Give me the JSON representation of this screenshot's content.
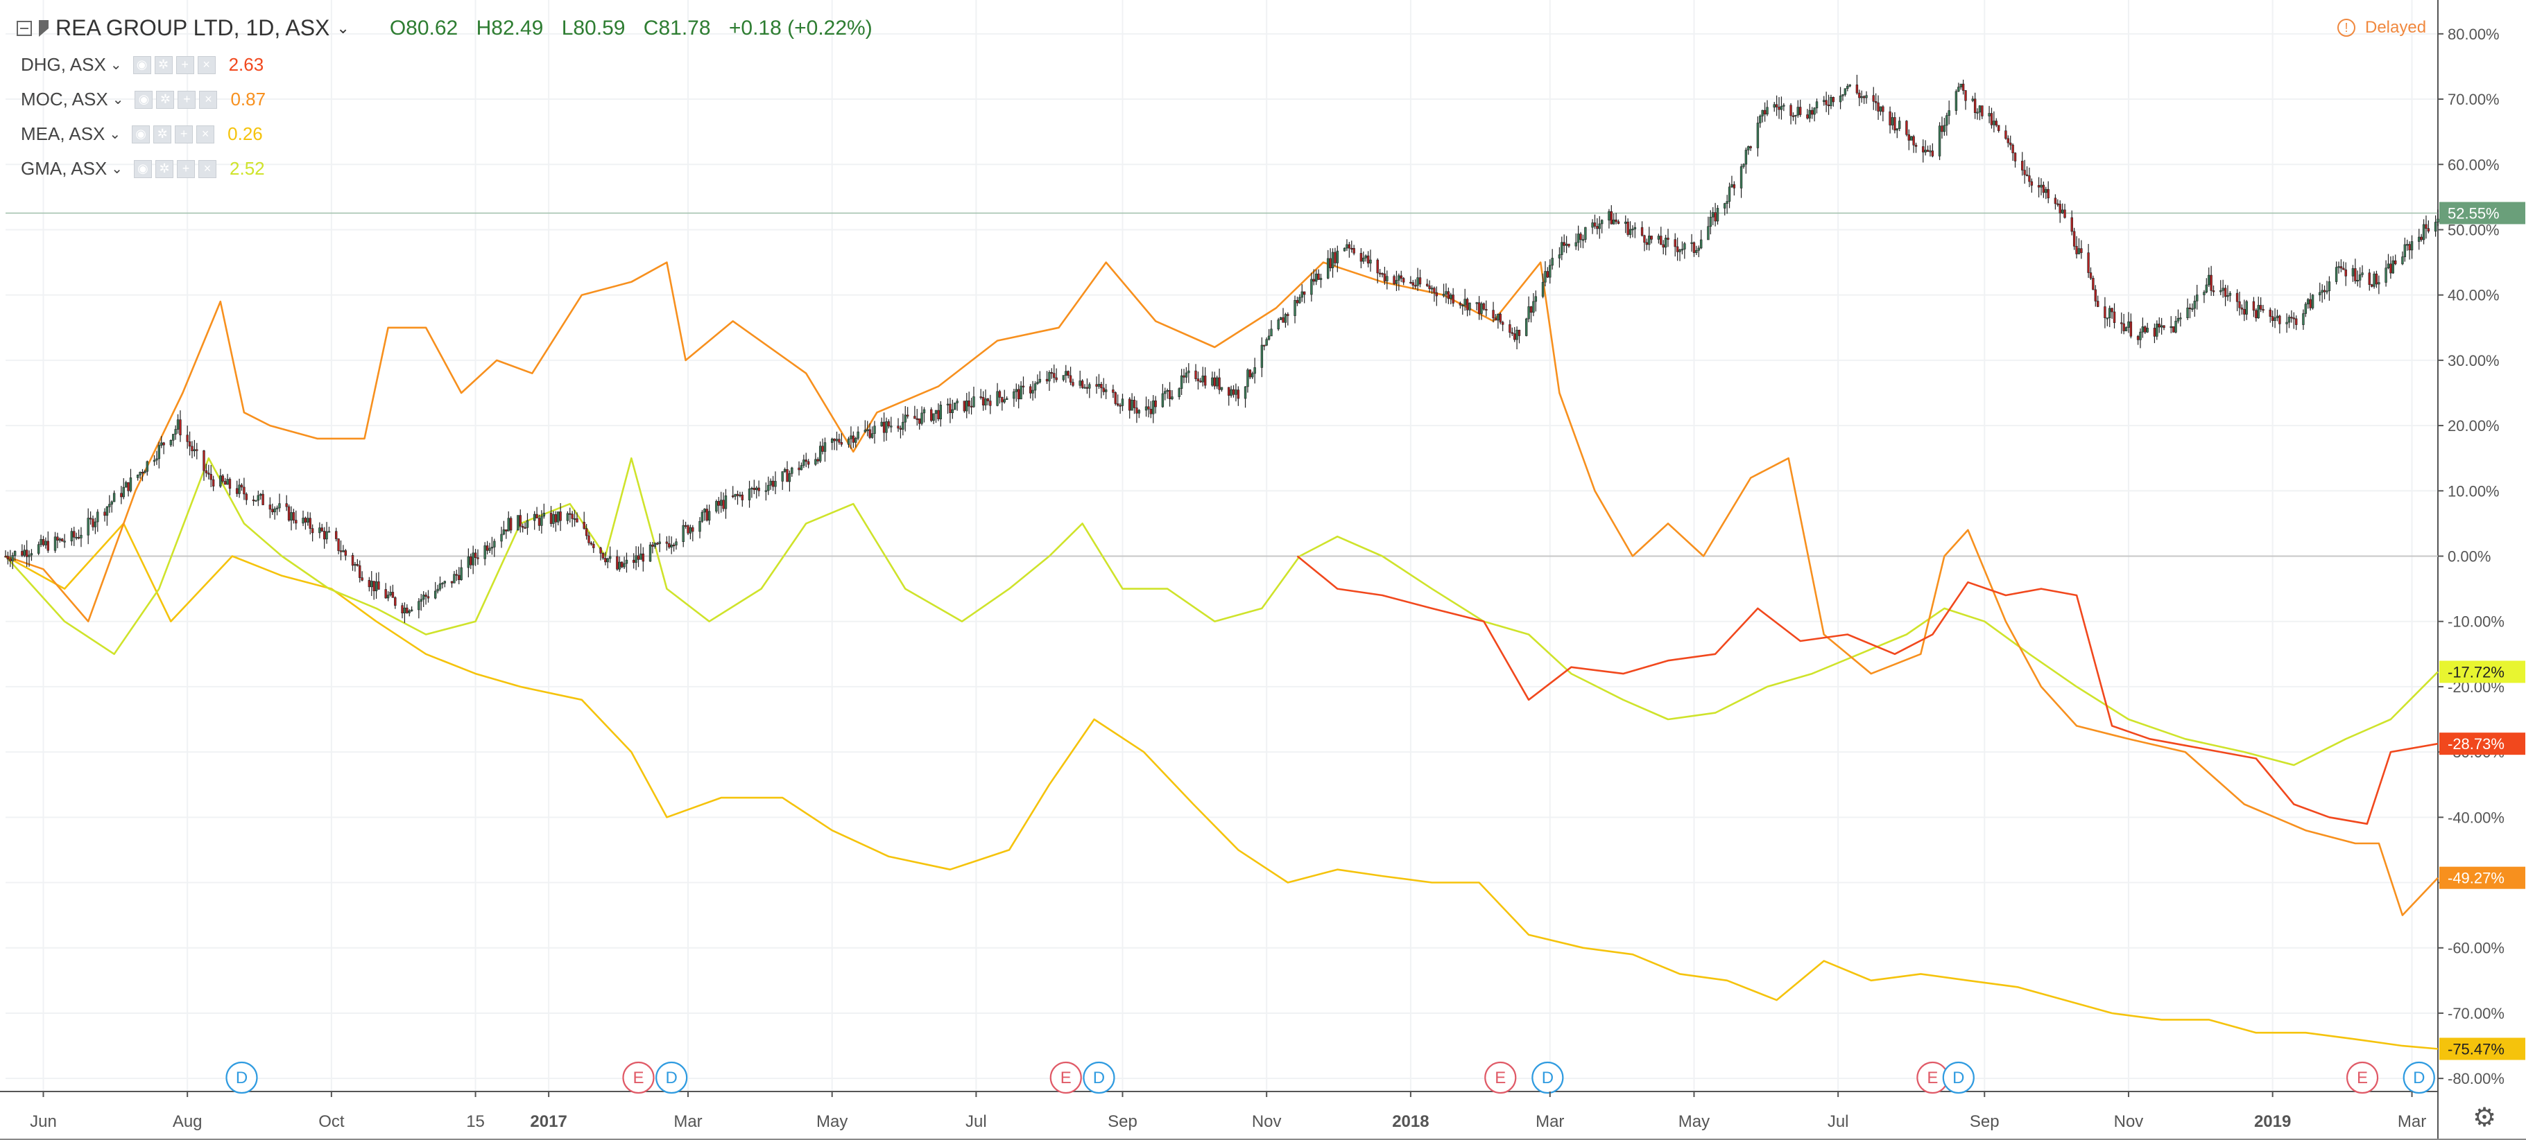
{
  "header": {
    "title": "REA GROUP LTD, 1D, ASX",
    "chevron": "⌄",
    "open": "O80.62",
    "high": "H82.49",
    "low": "L80.59",
    "close": "C81.78",
    "change": "+0.18 (+0.22%)",
    "collapse_icon": "minus-square-icon",
    "flag_icon": "flag-icon"
  },
  "comparisons": [
    {
      "symbol": "DHG, ASX",
      "value": "2.63",
      "color": "#f1481d"
    },
    {
      "symbol": "MOC, ASX",
      "value": "0.87",
      "color": "#f7901e"
    },
    {
      "symbol": "MEA, ASX",
      "value": "0.26",
      "color": "#f5c30c"
    },
    {
      "symbol": "GMA, ASX",
      "value": "2.52",
      "color": "#cfe32b"
    }
  ],
  "delayed": {
    "label": "Delayed",
    "icon": "info-icon"
  },
  "settings_icon": "gear-icon",
  "chart_data": {
    "type": "line",
    "title": "REA GROUP LTD, 1D, ASX",
    "y_axis": {
      "ticks": [
        "80.00%",
        "70.00%",
        "60.00%",
        "50.00%",
        "40.00%",
        "30.00%",
        "20.00%",
        "10.00%",
        "0.00%",
        "-10.00%",
        "-20.00%",
        "-30.00%",
        "-40.00%",
        "-50.00%",
        "-60.00%",
        "-70.00%",
        "-80.00%"
      ],
      "range": [
        -82,
        82
      ],
      "unit": "percent"
    },
    "x_axis": {
      "ticks": [
        "Jun",
        "Aug",
        "Oct",
        "15",
        "2017",
        "Mar",
        "May",
        "Jul",
        "Sep",
        "Nov",
        "2018",
        "Mar",
        "May",
        "Jul",
        "Sep",
        "Nov",
        "2019",
        "Mar"
      ],
      "bold": [
        "2017",
        "2018",
        "2019"
      ],
      "range": [
        "2016-05-16",
        "2019-03-12"
      ]
    },
    "grid": true,
    "events": [
      {
        "date": "2016-08-24",
        "type": "D"
      },
      {
        "date": "2017-02-08",
        "type": "E"
      },
      {
        "date": "2017-02-22",
        "type": "D"
      },
      {
        "date": "2017-08-08",
        "type": "E"
      },
      {
        "date": "2017-08-22",
        "type": "D"
      },
      {
        "date": "2018-02-08",
        "type": "E"
      },
      {
        "date": "2018-02-28",
        "type": "D"
      },
      {
        "date": "2018-08-10",
        "type": "E"
      },
      {
        "date": "2018-08-21",
        "type": "D"
      },
      {
        "date": "2019-02-08",
        "type": "E"
      },
      {
        "date": "2019-03-04",
        "type": "D"
      }
    ],
    "last_values": [
      {
        "label": "52.55%",
        "color": "#6a9f7a",
        "value": 52.55
      },
      {
        "label": "-17.72%",
        "color": "#e8f530",
        "value": -17.72
      },
      {
        "label": "-28.73%",
        "color": "#f1481d",
        "value": -28.73
      },
      {
        "label": "-49.27%",
        "color": "#f7901e",
        "value": -49.27
      },
      {
        "label": "-75.47%",
        "color": "#f5c30c",
        "value": -75.47
      }
    ],
    "series": [
      {
        "name": "REA GROUP LTD",
        "style": "candles",
        "up_color": "#3b7a57",
        "down_color": "#b22222",
        "x": [
          "2016-05-16",
          "2016-06-15",
          "2016-07-10",
          "2016-07-28",
          "2016-08-10",
          "2016-09-05",
          "2016-09-30",
          "2016-10-20",
          "2016-11-01",
          "2016-11-20",
          "2016-12-15",
          "2017-01-10",
          "2017-01-30",
          "2017-02-20",
          "2017-03-15",
          "2017-04-10",
          "2017-05-05",
          "2017-05-25",
          "2017-06-15",
          "2017-07-05",
          "2017-07-20",
          "2017-08-05",
          "2017-08-20",
          "2017-09-10",
          "2017-10-01",
          "2017-10-20",
          "2017-11-05",
          "2017-11-20",
          "2017-12-05",
          "2017-12-20",
          "2018-01-10",
          "2018-01-30",
          "2018-02-15",
          "2018-03-05",
          "2018-03-25",
          "2018-04-15",
          "2018-05-01",
          "2018-05-15",
          "2018-06-01",
          "2018-06-20",
          "2018-07-05",
          "2018-07-20",
          "2018-08-01",
          "2018-08-10",
          "2018-08-20",
          "2018-09-05",
          "2018-09-20",
          "2018-10-05",
          "2018-10-20",
          "2018-11-05",
          "2018-11-20",
          "2018-12-05",
          "2018-12-20",
          "2019-01-10",
          "2019-01-30",
          "2019-02-15",
          "2019-03-01",
          "2019-03-12"
        ],
        "values": [
          0,
          3,
          12,
          20,
          12,
          8,
          3,
          -5,
          -8,
          -4,
          5,
          6,
          -2,
          2,
          8,
          12,
          18,
          20,
          22,
          24,
          25,
          28,
          26,
          22,
          28,
          25,
          35,
          42,
          48,
          43,
          41,
          38,
          34,
          47,
          52,
          48,
          47,
          55,
          69,
          68,
          72,
          68,
          64,
          62,
          72,
          66,
          58,
          52,
          38,
          34,
          35,
          42,
          38,
          36,
          44,
          42,
          48,
          52
        ]
      },
      {
        "name": "DHG, ASX",
        "style": "line",
        "color": "#f1481d",
        "x": [
          "2017-11-14",
          "2017-12-01",
          "2017-12-20",
          "2018-01-10",
          "2018-02-01",
          "2018-02-20",
          "2018-03-10",
          "2018-04-01",
          "2018-04-20",
          "2018-05-10",
          "2018-05-28",
          "2018-06-15",
          "2018-07-05",
          "2018-07-25",
          "2018-08-10",
          "2018-08-25",
          "2018-09-10",
          "2018-09-25",
          "2018-10-10",
          "2018-10-25",
          "2018-11-10",
          "2018-11-25",
          "2018-12-10",
          "2018-12-25",
          "2019-01-10",
          "2019-01-25",
          "2019-02-10",
          "2019-02-20",
          "2019-03-12"
        ],
        "values": [
          0,
          -5,
          -6,
          -8,
          -10,
          -22,
          -17,
          -18,
          -16,
          -15,
          -8,
          -13,
          -12,
          -15,
          -12,
          -4,
          -6,
          -5,
          -6,
          -26,
          -28,
          -29,
          -30,
          -31,
          -38,
          -40,
          -41,
          -30,
          -28.73
        ]
      },
      {
        "name": "MOC, ASX",
        "style": "line",
        "color": "#f7901e",
        "x": [
          "2016-05-16",
          "2016-06-01",
          "2016-06-20",
          "2016-07-10",
          "2016-07-30",
          "2016-08-15",
          "2016-08-25",
          "2016-09-05",
          "2016-09-25",
          "2016-10-15",
          "2016-10-25",
          "2016-11-10",
          "2016-11-25",
          "2016-12-10",
          "2016-12-25",
          "2017-01-15",
          "2017-02-05",
          "2017-02-20",
          "2017-02-28",
          "2017-03-20",
          "2017-04-20",
          "2017-05-10",
          "2017-05-20",
          "2017-06-15",
          "2017-07-10",
          "2017-08-05",
          "2017-08-25",
          "2017-09-15",
          "2017-10-10",
          "2017-11-05",
          "2017-11-25",
          "2017-12-20",
          "2018-01-15",
          "2018-02-05",
          "2018-02-25",
          "2018-03-05",
          "2018-03-20",
          "2018-04-05",
          "2018-04-20",
          "2018-05-05",
          "2018-05-25",
          "2018-06-10",
          "2018-06-25",
          "2018-07-15",
          "2018-08-05",
          "2018-08-15",
          "2018-08-25",
          "2018-09-10",
          "2018-09-25",
          "2018-10-10",
          "2018-11-01",
          "2018-11-25",
          "2018-12-20",
          "2019-01-15",
          "2019-02-05",
          "2019-02-15",
          "2019-02-25",
          "2019-03-12"
        ],
        "values": [
          0,
          -2,
          -10,
          10,
          25,
          39,
          22,
          20,
          18,
          18,
          35,
          35,
          25,
          30,
          28,
          40,
          42,
          45,
          30,
          36,
          28,
          16,
          22,
          26,
          33,
          35,
          45,
          36,
          32,
          38,
          45,
          42,
          40,
          36,
          45,
          25,
          10,
          0,
          5,
          0,
          12,
          15,
          -12,
          -18,
          -15,
          0,
          4,
          -10,
          -20,
          -26,
          -28,
          -30,
          -38,
          -42,
          -44,
          -44,
          -55,
          -49.27
        ]
      },
      {
        "name": "MEA, ASX",
        "style": "line",
        "color": "#f5c30c",
        "x": [
          "2016-05-16",
          "2016-06-10",
          "2016-07-05",
          "2016-07-25",
          "2016-08-20",
          "2016-09-10",
          "2016-10-01",
          "2016-10-20",
          "2016-11-10",
          "2016-12-01",
          "2016-12-20",
          "2017-01-15",
          "2017-02-05",
          "2017-02-20",
          "2017-03-15",
          "2017-04-10",
          "2017-05-01",
          "2017-05-25",
          "2017-06-20",
          "2017-07-15",
          "2017-08-01",
          "2017-08-20",
          "2017-09-10",
          "2017-10-01",
          "2017-10-20",
          "2017-11-10",
          "2017-12-01",
          "2017-12-20",
          "2018-01-10",
          "2018-01-30",
          "2018-02-20",
          "2018-03-15",
          "2018-04-05",
          "2018-04-25",
          "2018-05-15",
          "2018-06-05",
          "2018-06-25",
          "2018-07-15",
          "2018-08-05",
          "2018-08-25",
          "2018-09-15",
          "2018-10-05",
          "2018-10-25",
          "2018-11-15",
          "2018-12-05",
          "2018-12-25",
          "2019-01-15",
          "2019-02-05",
          "2019-02-25",
          "2019-03-12"
        ],
        "values": [
          0,
          -5,
          5,
          -10,
          0,
          -3,
          -5,
          -10,
          -15,
          -18,
          -20,
          -22,
          -30,
          -40,
          -37,
          -37,
          -42,
          -46,
          -48,
          -45,
          -35,
          -25,
          -30,
          -38,
          -45,
          -50,
          -48,
          -49,
          -50,
          -50,
          -58,
          -60,
          -61,
          -64,
          -65,
          -68,
          -62,
          -65,
          -64,
          -65,
          -66,
          -68,
          -70,
          -71,
          -71,
          -73,
          -73,
          -74,
          -75,
          -75.47
        ]
      },
      {
        "name": "GMA, ASX",
        "style": "line",
        "color": "#cfe32b",
        "x": [
          "2016-05-16",
          "2016-06-10",
          "2016-07-01",
          "2016-07-20",
          "2016-08-10",
          "2016-08-25",
          "2016-09-10",
          "2016-09-30",
          "2016-10-20",
          "2016-11-10",
          "2016-12-01",
          "2016-12-20",
          "2017-01-10",
          "2017-01-25",
          "2017-02-05",
          "2017-02-20",
          "2017-03-10",
          "2017-04-01",
          "2017-04-20",
          "2017-05-10",
          "2017-06-01",
          "2017-06-25",
          "2017-07-15",
          "2017-08-01",
          "2017-08-15",
          "2017-09-01",
          "2017-09-20",
          "2017-10-10",
          "2017-10-30",
          "2017-11-15",
          "2017-12-01",
          "2017-12-20",
          "2018-01-10",
          "2018-02-01",
          "2018-02-20",
          "2018-03-10",
          "2018-04-01",
          "2018-04-20",
          "2018-05-10",
          "2018-06-01",
          "2018-06-20",
          "2018-07-10",
          "2018-07-30",
          "2018-08-15",
          "2018-09-01",
          "2018-09-20",
          "2018-10-10",
          "2018-11-01",
          "2018-11-25",
          "2018-12-20",
          "2019-01-10",
          "2019-02-01",
          "2019-02-20",
          "2019-03-12"
        ],
        "values": [
          0,
          -10,
          -15,
          -5,
          15,
          5,
          0,
          -5,
          -8,
          -12,
          -10,
          5,
          8,
          0,
          15,
          -5,
          -10,
          -5,
          5,
          8,
          -5,
          -10,
          -5,
          0,
          5,
          -5,
          -5,
          -10,
          -8,
          0,
          3,
          0,
          -5,
          -10,
          -12,
          -18,
          -22,
          -25,
          -24,
          -20,
          -18,
          -15,
          -12,
          -8,
          -10,
          -15,
          -20,
          -25,
          -28,
          -30,
          -32,
          -28,
          -25,
          -17.72
        ]
      }
    ]
  }
}
